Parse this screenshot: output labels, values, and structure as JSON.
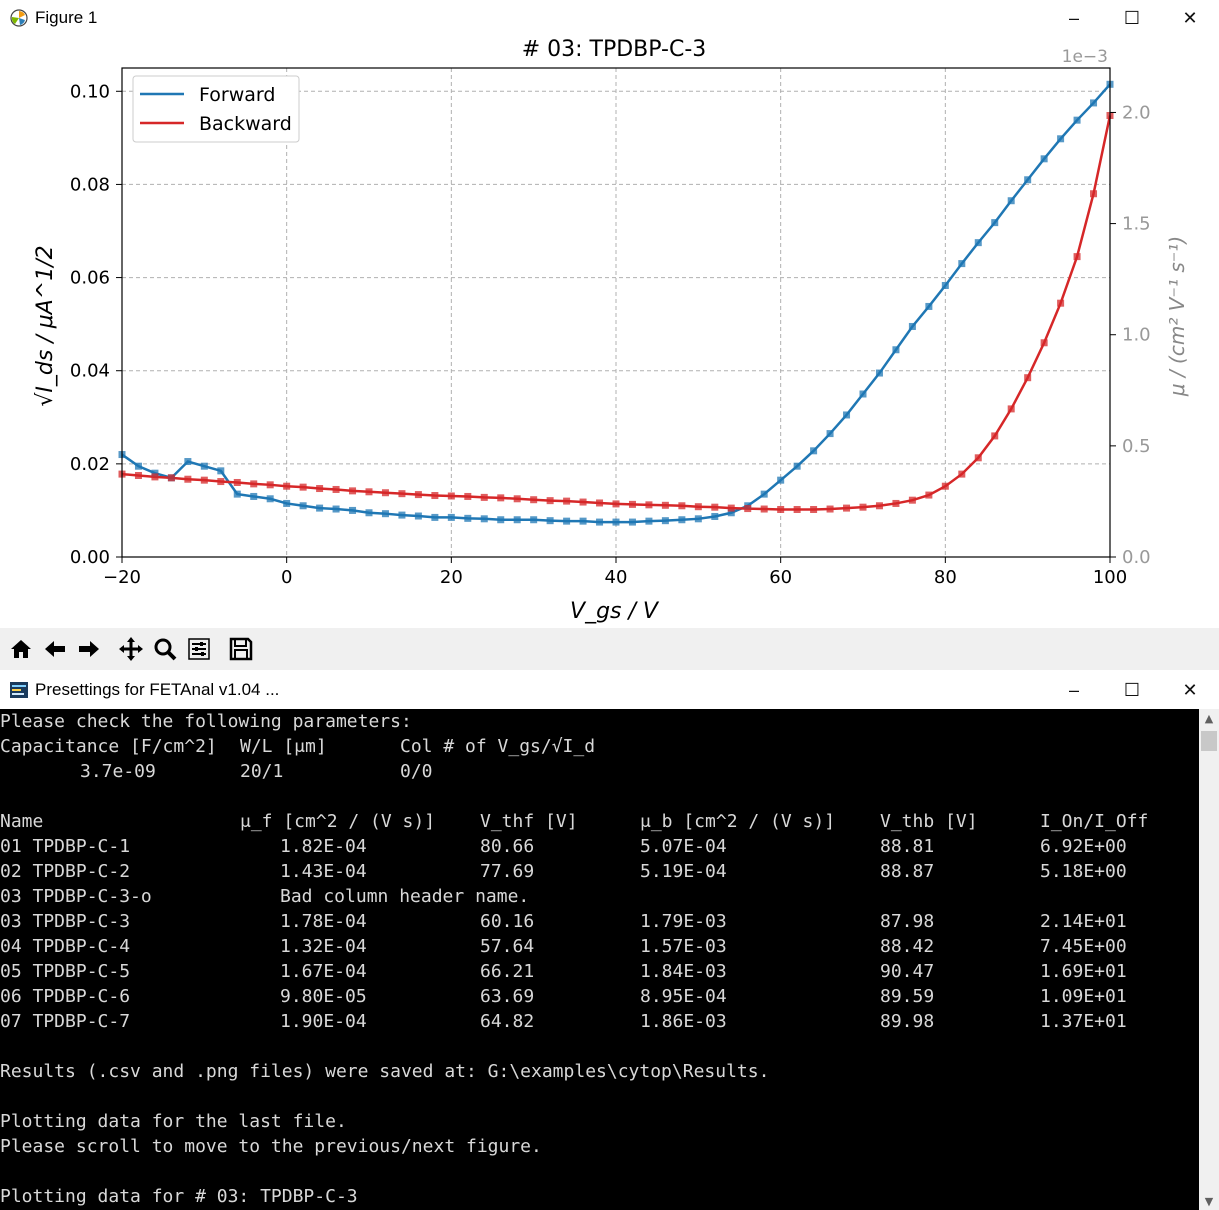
{
  "figure_window": {
    "title": "Figure 1",
    "buttons": [
      "–",
      "☐",
      "✕"
    ]
  },
  "chart_data": {
    "type": "line",
    "title": "# 03: TPDBP-C-3",
    "xlabel": "V_gs / V",
    "ylabel": "√I_ds / μA^1/2",
    "y2label": "μ / (cm² V⁻¹ s⁻¹)",
    "y2_offset_text": "1e−3",
    "xlim": [
      -20,
      100
    ],
    "ylim": [
      0,
      0.105
    ],
    "y2lim": [
      0,
      0.0022
    ],
    "x_ticks": [
      -20,
      0,
      20,
      40,
      60,
      80,
      100
    ],
    "x_tick_labels": [
      "−20",
      "0",
      "20",
      "40",
      "60",
      "80",
      "100"
    ],
    "y_ticks": [
      0,
      0.02,
      0.04,
      0.06,
      0.08,
      0.1
    ],
    "y_tick_labels": [
      "0.00",
      "0.02",
      "0.04",
      "0.06",
      "0.08",
      "0.10"
    ],
    "y2_ticks": [
      0,
      0.0005,
      0.001,
      0.0015,
      0.002
    ],
    "y2_tick_labels": [
      "0.0",
      "0.5",
      "1.0",
      "1.5",
      "2.0"
    ],
    "grid": true,
    "legend_position": "top-left",
    "legend": [
      "Forward",
      "Backward"
    ],
    "colors": {
      "forward": "#1f77b4",
      "backward": "#d62728"
    },
    "series": [
      {
        "name": "Forward",
        "color": "#1f77b4",
        "x": [
          -20,
          -18,
          -16,
          -14,
          -12,
          -10,
          -8,
          -6,
          -4,
          -2,
          0,
          2,
          4,
          6,
          8,
          10,
          12,
          14,
          16,
          18,
          20,
          22,
          24,
          26,
          28,
          30,
          32,
          34,
          36,
          38,
          40,
          42,
          44,
          46,
          48,
          50,
          52,
          54,
          56,
          58,
          60,
          62,
          64,
          66,
          68,
          70,
          72,
          74,
          76,
          78,
          80,
          82,
          84,
          86,
          88,
          90,
          92,
          94,
          96,
          98,
          100
        ],
        "y": [
          0.022,
          0.0195,
          0.018,
          0.017,
          0.0205,
          0.0195,
          0.0185,
          0.0135,
          0.013,
          0.0125,
          0.0115,
          0.011,
          0.0105,
          0.0103,
          0.01,
          0.0095,
          0.0093,
          0.009,
          0.0088,
          0.0085,
          0.0085,
          0.0083,
          0.0082,
          0.008,
          0.008,
          0.008,
          0.0078,
          0.0077,
          0.0077,
          0.0075,
          0.0075,
          0.0075,
          0.0077,
          0.0078,
          0.008,
          0.0082,
          0.0087,
          0.0095,
          0.011,
          0.0135,
          0.0165,
          0.0195,
          0.0228,
          0.0265,
          0.0305,
          0.035,
          0.0395,
          0.0445,
          0.0495,
          0.0538,
          0.0583,
          0.063,
          0.0675,
          0.0718,
          0.0765,
          0.081,
          0.0855,
          0.0898,
          0.0938,
          0.0975,
          0.1015
        ]
      },
      {
        "name": "Backward",
        "color": "#d62728",
        "x": [
          -20,
          -18,
          -16,
          -14,
          -12,
          -10,
          -8,
          -6,
          -4,
          -2,
          0,
          2,
          4,
          6,
          8,
          10,
          12,
          14,
          16,
          18,
          20,
          22,
          24,
          26,
          28,
          30,
          32,
          34,
          36,
          38,
          40,
          42,
          44,
          46,
          48,
          50,
          52,
          54,
          56,
          58,
          60,
          62,
          64,
          66,
          68,
          70,
          72,
          74,
          76,
          78,
          80,
          82,
          84,
          86,
          88,
          90,
          92,
          94,
          96,
          98,
          100
        ],
        "y": [
          0.0178,
          0.0175,
          0.0172,
          0.017,
          0.0167,
          0.0165,
          0.0162,
          0.016,
          0.0157,
          0.0155,
          0.0152,
          0.015,
          0.0147,
          0.0145,
          0.0142,
          0.014,
          0.0138,
          0.0136,
          0.0134,
          0.0132,
          0.0131,
          0.013,
          0.0128,
          0.0127,
          0.0125,
          0.0123,
          0.0121,
          0.012,
          0.0118,
          0.0116,
          0.0114,
          0.0113,
          0.0112,
          0.0111,
          0.011,
          0.0108,
          0.0107,
          0.0105,
          0.0104,
          0.0103,
          0.0102,
          0.0102,
          0.0102,
          0.0103,
          0.0105,
          0.0107,
          0.011,
          0.0115,
          0.0122,
          0.0133,
          0.0152,
          0.0178,
          0.0213,
          0.026,
          0.0318,
          0.0385,
          0.046,
          0.0545,
          0.0645,
          0.078,
          0.0948
        ]
      }
    ]
  },
  "toolbar": {
    "buttons": [
      "home-icon",
      "back-icon",
      "forward-icon",
      "pan-icon",
      "zoom-icon",
      "configure-icon",
      "save-icon"
    ]
  },
  "console_window": {
    "title": "Presettings for FETAnal v1.04 ...",
    "buttons": [
      "–",
      "☐",
      "✕"
    ]
  },
  "console": {
    "intro": "Please check the following parameters:",
    "param_headers": [
      "Capacitance [F/cm^2]",
      "W/L [μm]",
      "Col # of V_gs/√I_d"
    ],
    "param_values": [
      "3.7e-09",
      "20/1",
      "0/0"
    ],
    "table_headers": [
      "Name",
      "μ_f [cm^2 / (V s)]",
      "V_thf [V]",
      "μ_b [cm^2 / (V s)]",
      "V_thb [V]",
      "I_On/I_Off"
    ],
    "rows": [
      [
        "01 TPDBP-C-1",
        "1.82E-04",
        "80.66",
        "5.07E-04",
        "88.81",
        "6.92E+00"
      ],
      [
        "02 TPDBP-C-2",
        "1.43E-04",
        "77.69",
        "5.19E-04",
        "88.87",
        "5.18E+00"
      ],
      [
        "03 TPDBP-C-3-o",
        "Bad column header name.",
        "",
        "",
        "",
        ""
      ],
      [
        "03 TPDBP-C-3",
        "1.78E-04",
        "60.16",
        "1.79E-03",
        "87.98",
        "2.14E+01"
      ],
      [
        "04 TPDBP-C-4",
        "1.32E-04",
        "57.64",
        "1.57E-03",
        "88.42",
        "7.45E+00"
      ],
      [
        "05 TPDBP-C-5",
        "1.67E-04",
        "66.21",
        "1.84E-03",
        "90.47",
        "1.69E+01"
      ],
      [
        "06 TPDBP-C-6",
        "9.80E-05",
        "63.69",
        "8.95E-04",
        "89.59",
        "1.09E+01"
      ],
      [
        "07 TPDBP-C-7",
        "1.90E-04",
        "64.82",
        "1.86E-03",
        "89.98",
        "1.37E+01"
      ]
    ],
    "saved_line": "Results (.csv and .png files) were saved at: G:\\examples\\cytop\\Results.",
    "plot_line1": "Plotting data for the last file.",
    "plot_line2": "Please scroll to move to the previous/next figure.",
    "plot_line3": "Plotting data for # 03: TPDBP-C-3"
  }
}
